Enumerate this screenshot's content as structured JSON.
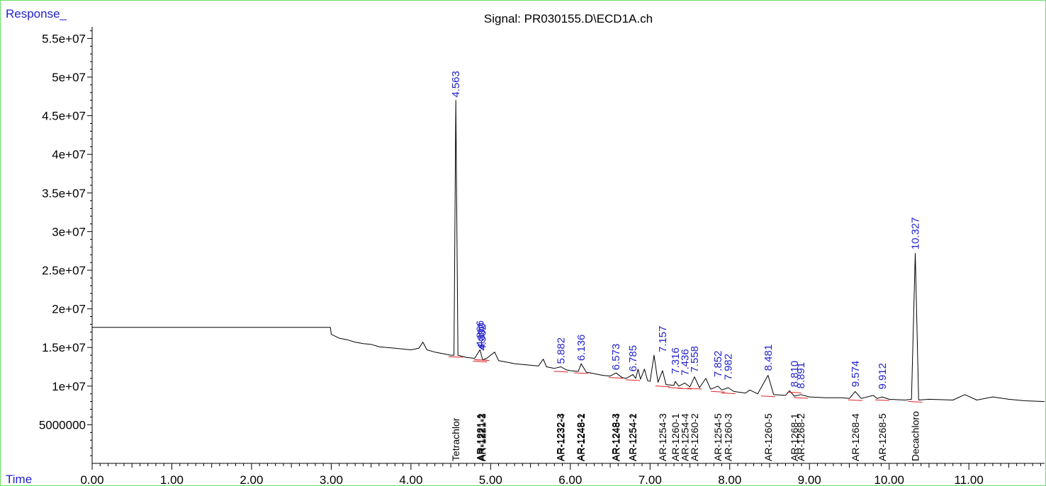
{
  "chart_data": {
    "type": "line",
    "title": "Signal: PR030155.D\\ECD1A.ch",
    "ylabel": "Response_",
    "xlabel": "Time",
    "xlim": [
      0.0,
      11.95
    ],
    "ylim": [
      0,
      56500000
    ],
    "x_ticks": [
      "0.00",
      "1.00",
      "2.00",
      "3.00",
      "4.00",
      "5.00",
      "6.00",
      "7.00",
      "8.00",
      "9.00",
      "10.00",
      "11.00"
    ],
    "y_ticks": [
      "5000000",
      "1e+07",
      "1.5e+07",
      "2e+07",
      "2.5e+07",
      "3e+07",
      "3.5e+07",
      "4e+07",
      "4.5e+07",
      "5e+07",
      "5.5e+07"
    ],
    "y_tick_values": [
      5000000,
      10000000,
      15000000,
      20000000,
      25000000,
      30000000,
      35000000,
      40000000,
      45000000,
      50000000,
      55000000
    ],
    "grid": false,
    "colors": {
      "trace": "#000000",
      "peak_label": "#2222cc",
      "baseline": "#dd2222",
      "frame": "#66dd66"
    },
    "baseline_segment": {
      "x": [
        0.0,
        2.99
      ],
      "y": 17600000
    },
    "series": [
      {
        "points": [
          [
            2.99,
            17600000
          ],
          [
            3.0,
            16700000
          ],
          [
            3.1,
            16200000
          ],
          [
            3.2,
            16000000
          ],
          [
            3.3,
            15700000
          ],
          [
            3.4,
            15500000
          ],
          [
            3.5,
            15400000
          ],
          [
            3.6,
            15100000
          ],
          [
            3.7,
            15000000
          ],
          [
            3.8,
            14900000
          ],
          [
            3.9,
            14800000
          ],
          [
            4.0,
            14700000
          ],
          [
            4.1,
            14900000
          ],
          [
            4.15,
            15700000
          ],
          [
            4.2,
            14700000
          ],
          [
            4.3,
            14400000
          ],
          [
            4.4,
            14200000
          ],
          [
            4.5,
            14000000
          ],
          [
            4.54,
            14000000
          ],
          [
            4.563,
            47000000
          ],
          [
            4.59,
            14000000
          ],
          [
            4.7,
            13700000
          ],
          [
            4.8,
            13600000
          ],
          [
            4.866,
            14700000
          ],
          [
            4.9,
            13400000
          ],
          [
            4.95,
            13600000
          ],
          [
            5.05,
            14400000
          ],
          [
            5.1,
            13300000
          ],
          [
            5.2,
            13100000
          ],
          [
            5.3,
            12900000
          ],
          [
            5.4,
            12800000
          ],
          [
            5.5,
            12700000
          ],
          [
            5.6,
            12600000
          ],
          [
            5.66,
            13500000
          ],
          [
            5.7,
            12500000
          ],
          [
            5.8,
            12300000
          ],
          [
            5.882,
            12500000
          ],
          [
            5.95,
            12100000
          ],
          [
            6.0,
            12000000
          ],
          [
            6.1,
            11900000
          ],
          [
            6.136,
            12900000
          ],
          [
            6.2,
            11800000
          ],
          [
            6.3,
            11600000
          ],
          [
            6.4,
            11400000
          ],
          [
            6.5,
            11300000
          ],
          [
            6.573,
            11700000
          ],
          [
            6.65,
            11100000
          ],
          [
            6.7,
            11000000
          ],
          [
            6.785,
            11500000
          ],
          [
            6.82,
            11000000
          ],
          [
            6.85,
            12200000
          ],
          [
            6.88,
            10900000
          ],
          [
            6.93,
            12200000
          ],
          [
            6.97,
            10700000
          ],
          [
            7.0,
            10600000
          ],
          [
            7.05,
            14000000
          ],
          [
            7.1,
            10500000
          ],
          [
            7.157,
            12000000
          ],
          [
            7.2,
            10200000
          ],
          [
            7.3,
            10100000
          ],
          [
            7.316,
            10600000
          ],
          [
            7.36,
            10000000
          ],
          [
            7.436,
            10400000
          ],
          [
            7.5,
            9900000
          ],
          [
            7.558,
            11200000
          ],
          [
            7.62,
            9800000
          ],
          [
            7.7,
            11000000
          ],
          [
            7.76,
            9600000
          ],
          [
            7.852,
            10000000
          ],
          [
            7.9,
            9500000
          ],
          [
            7.982,
            9800000
          ],
          [
            8.05,
            9300000
          ],
          [
            8.2,
            9100000
          ],
          [
            8.25,
            9500000
          ],
          [
            8.35,
            9000000
          ],
          [
            8.481,
            11400000
          ],
          [
            8.55,
            8900000
          ],
          [
            8.7,
            8800000
          ],
          [
            8.75,
            9400000
          ],
          [
            8.81,
            8700000
          ],
          [
            8.891,
            8900000
          ],
          [
            9.0,
            8600000
          ],
          [
            9.2,
            8500000
          ],
          [
            9.4,
            8500000
          ],
          [
            9.5,
            8400000
          ],
          [
            9.574,
            9300000
          ],
          [
            9.65,
            8400000
          ],
          [
            9.8,
            8800000
          ],
          [
            9.85,
            8400000
          ],
          [
            9.912,
            8600000
          ],
          [
            10.0,
            8300000
          ],
          [
            10.2,
            8200000
          ],
          [
            10.28,
            8300000
          ],
          [
            10.327,
            27200000
          ],
          [
            10.37,
            8200000
          ],
          [
            10.5,
            8300000
          ],
          [
            10.8,
            8200000
          ],
          [
            10.95,
            8900000
          ],
          [
            11.1,
            8200000
          ],
          [
            11.3,
            8600000
          ],
          [
            11.5,
            8300000
          ],
          [
            11.7,
            8100000
          ],
          [
            11.95,
            8000000
          ]
        ]
      }
    ],
    "peak_labels": [
      {
        "text": "4.563",
        "x": 4.563,
        "y": 47000000
      },
      {
        "text": "4.866",
        "x": 4.866,
        "y": 14700000
      },
      {
        "text": "4.890",
        "x": 4.88,
        "y": 14400000
      },
      {
        "text": "4.902",
        "x": 4.895,
        "y": 14200000
      },
      {
        "text": "5.882",
        "x": 5.882,
        "y": 12500000
      },
      {
        "text": "6.136",
        "x": 6.136,
        "y": 12900000
      },
      {
        "text": "6.573",
        "x": 6.573,
        "y": 11700000
      },
      {
        "text": "6.785",
        "x": 6.785,
        "y": 11500000
      },
      {
        "text": "7.157",
        "x": 7.157,
        "y": 14000000
      },
      {
        "text": "7.316",
        "x": 7.316,
        "y": 11200000
      },
      {
        "text": "7.436",
        "x": 7.436,
        "y": 11000000
      },
      {
        "text": "7.558",
        "x": 7.558,
        "y": 11400000
      },
      {
        "text": "7.852",
        "x": 7.852,
        "y": 10800000
      },
      {
        "text": "7.982",
        "x": 7.982,
        "y": 10400000
      },
      {
        "text": "8.481",
        "x": 8.481,
        "y": 11600000
      },
      {
        "text": "8.810",
        "x": 8.81,
        "y": 9500000
      },
      {
        "text": "8.891",
        "x": 8.891,
        "y": 9300000
      },
      {
        "text": "9.574",
        "x": 9.574,
        "y": 9500000
      },
      {
        "text": "9.912",
        "x": 9.912,
        "y": 9200000
      },
      {
        "text": "10.327",
        "x": 10.327,
        "y": 27300000
      }
    ],
    "compound_labels": [
      {
        "text": "Tetrachlor",
        "x": 4.563
      },
      {
        "text": "AR-1221-1",
        "x": 4.866
      },
      {
        "text": "AR-1221-2",
        "x": 4.88
      },
      {
        "text": "AR-1221-3",
        "x": 4.895
      },
      {
        "text": "AR-1232-3",
        "x": 5.874
      },
      {
        "text": "AR-1232-4",
        "x": 5.882
      },
      {
        "text": "AR-1248-1",
        "x": 6.128
      },
      {
        "text": "AR-1248-2",
        "x": 6.136
      },
      {
        "text": "AR-1248-3",
        "x": 6.568
      },
      {
        "text": "AR-1248-4",
        "x": 6.573
      },
      {
        "text": "AR-1254-1",
        "x": 6.78
      },
      {
        "text": "AR-1254-2",
        "x": 6.785
      },
      {
        "text": "AR-1254-3",
        "x": 7.157
      },
      {
        "text": "AR-1260-1",
        "x": 7.316
      },
      {
        "text": "AR-1254-4",
        "x": 7.436
      },
      {
        "text": "AR-1260-2",
        "x": 7.558
      },
      {
        "text": "AR-1254-5",
        "x": 7.852
      },
      {
        "text": "AR-1260-3",
        "x": 7.982
      },
      {
        "text": "AR-1260-5",
        "x": 8.481
      },
      {
        "text": "AR-1268-1",
        "x": 8.81
      },
      {
        "text": "AR-1268-2",
        "x": 8.891
      },
      {
        "text": "AR-1268-4",
        "x": 9.574
      },
      {
        "text": "AR-1268-5",
        "x": 9.912
      },
      {
        "text": "Decachloro",
        "x": 10.327
      }
    ]
  }
}
